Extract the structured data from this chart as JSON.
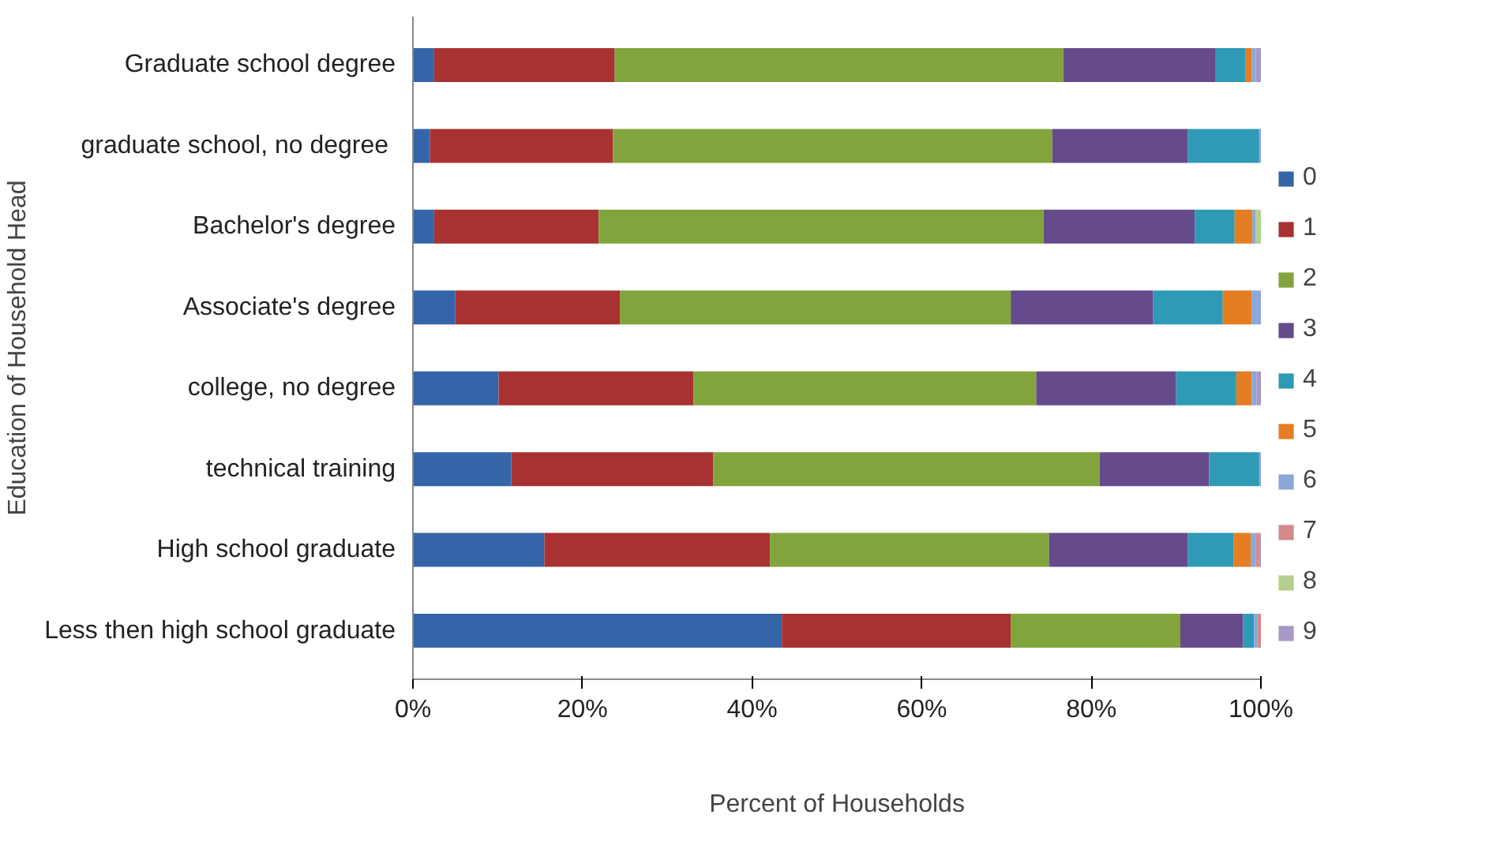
{
  "chart_data": {
    "type": "bar",
    "orientation": "horizontal",
    "stacked": true,
    "xlabel": "Percent of Households",
    "ylabel": "Education of Household Head",
    "categories": [
      "Graduate school degree",
      "graduate school,  no degree",
      "Bachelor's degree",
      "Associate's degree",
      "college, no degree",
      "technical training",
      "High school graduate",
      "Less then high school graduate"
    ],
    "xlim": [
      0,
      100
    ],
    "xticks": [
      {
        "value": 0,
        "label": "0%"
      },
      {
        "value": 20,
        "label": "20%"
      },
      {
        "value": 40,
        "label": "40%"
      },
      {
        "value": 60,
        "label": "60%"
      },
      {
        "value": 80,
        "label": "80%"
      },
      {
        "value": 100,
        "label": "100%"
      }
    ],
    "grid": false,
    "legend": "right",
    "series": [
      {
        "name": "0",
        "color": "#3465a8",
        "values": [
          2.5,
          2.0,
          2.5,
          5.0,
          10.1,
          11.6,
          15.5,
          43.5
        ]
      },
      {
        "name": "1",
        "color": "#a83232",
        "values": [
          21.3,
          21.6,
          19.4,
          19.4,
          23.0,
          23.8,
          26.6,
          27.0
        ]
      },
      {
        "name": "2",
        "color": "#82a43c",
        "values": [
          52.9,
          51.8,
          52.5,
          46.1,
          40.4,
          45.6,
          32.9,
          20.0
        ]
      },
      {
        "name": "3",
        "color": "#654a8c",
        "values": [
          17.9,
          16.0,
          17.8,
          16.8,
          16.5,
          12.9,
          16.4,
          7.4
        ]
      },
      {
        "name": "4",
        "color": "#2e9ab5",
        "values": [
          3.6,
          8.4,
          4.7,
          8.2,
          7.1,
          5.9,
          5.4,
          1.3
        ]
      },
      {
        "name": "5",
        "color": "#e57d22",
        "values": [
          0.7,
          0,
          2.1,
          3.4,
          1.8,
          0,
          2.0,
          0
        ]
      },
      {
        "name": "6",
        "color": "#8aa8d8",
        "values": [
          0.5,
          0.2,
          0.4,
          1.1,
          0.6,
          0.2,
          0.6,
          0.4
        ]
      },
      {
        "name": "7",
        "color": "#d48a8a",
        "values": [
          0,
          0,
          0,
          0,
          0,
          0,
          0.4,
          0.4
        ]
      },
      {
        "name": "8",
        "color": "#b5cf8f",
        "values": [
          0,
          0,
          0.6,
          0,
          0,
          0,
          0,
          0
        ]
      },
      {
        "name": "9",
        "color": "#a898c6",
        "values": [
          0.6,
          0,
          0,
          0,
          0.5,
          0,
          0.2,
          0
        ]
      }
    ]
  }
}
